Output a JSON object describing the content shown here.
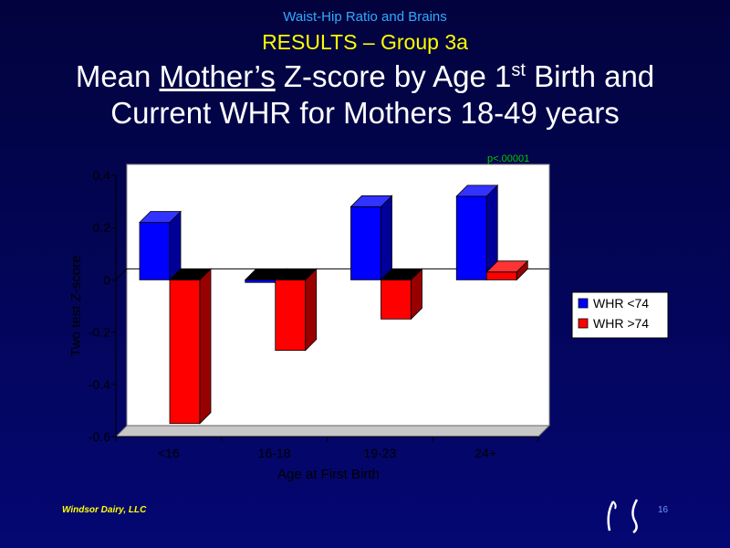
{
  "slide": {
    "header_line1": "Waist-Hip Ratio and Brains",
    "header_line2": "RESULTS – Group 3a",
    "title_prefix": "Mean ",
    "title_underlined": "Mother’s",
    "title_mid": " Z-score by Age 1",
    "title_sup": "st",
    "title_suffix": " Birth and",
    "title_line2": "Current WHR for Mothers 18-49 years",
    "footer_left": "Windsor Dairy, LLC",
    "page_number": "16"
  },
  "chart_data": {
    "type": "bar",
    "categories": [
      "<16",
      "16-18",
      "19-23",
      "24+"
    ],
    "series": [
      {
        "name": "WHR <74",
        "values": [
          0.22,
          -0.01,
          0.28,
          0.32
        ],
        "color": "#0000ff"
      },
      {
        "name": "WHR >74",
        "values": [
          -0.55,
          -0.27,
          -0.15,
          0.03
        ],
        "color": "#ff0000"
      }
    ],
    "xlabel": "Age at First Birth",
    "ylabel": "Two test Z-score",
    "ylim": [
      -0.6,
      0.4
    ],
    "yticks": [
      "-0.6",
      "-0.4",
      "-0.2",
      "0",
      "0.2",
      "0.4"
    ],
    "annotation": "p<.00001",
    "annotation_color": "#00cc00",
    "legend_position": "right",
    "plot_background": "#ffffff",
    "grid": false,
    "style": "3d"
  }
}
